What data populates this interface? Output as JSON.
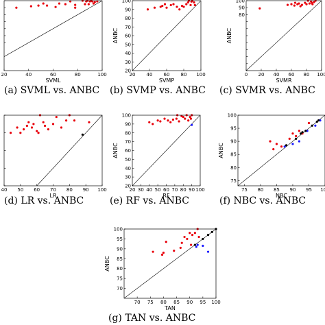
{
  "chart_data": [
    {
      "type": "scatter",
      "caption": "(a) SVML vs. ANBC",
      "xlabel": "SVML",
      "ylabel": "",
      "xlim": [
        20,
        100
      ],
      "ylim": [
        0,
        100
      ],
      "xticks": [
        20,
        40,
        60,
        80,
        100
      ],
      "yticks": [
        40,
        50,
        60,
        70,
        80,
        90,
        100
      ],
      "ytick_labels": [
        "",
        "",
        "",
        "",
        "",
        "90",
        ""
      ],
      "diagonal": true,
      "series": [
        {
          "color": "#e8000b",
          "points": [
            [
              30,
              90
            ],
            [
              42,
              92
            ],
            [
              48,
              93
            ],
            [
              52,
              96
            ],
            [
              55,
              93
            ],
            [
              62,
              91
            ],
            [
              65,
              96
            ],
            [
              70,
              95
            ],
            [
              74,
              99
            ],
            [
              78,
              90
            ],
            [
              78,
              94
            ],
            [
              84,
              100
            ],
            [
              86,
              95
            ],
            [
              87,
              99
            ],
            [
              88,
              100
            ],
            [
              89,
              95
            ],
            [
              90,
              99
            ],
            [
              91,
              100
            ],
            [
              92,
              99
            ],
            [
              93,
              96
            ],
            [
              94,
              98
            ],
            [
              96,
              99
            ]
          ]
        }
      ]
    },
    {
      "type": "scatter",
      "caption": "(b) SVMP vs. ANBC",
      "xlabel": "SVMP",
      "ylabel": "ANBC",
      "xlim": [
        20,
        100
      ],
      "ylim": [
        20,
        100
      ],
      "xticks": [
        20,
        40,
        60,
        80,
        100
      ],
      "yticks": [
        20,
        30,
        40,
        50,
        60,
        70,
        80,
        90,
        100
      ],
      "diagonal": true,
      "series": [
        {
          "color": "#e8000b",
          "points": [
            [
              38,
              90
            ],
            [
              46,
              92
            ],
            [
              53,
              93
            ],
            [
              55,
              94
            ],
            [
              58,
              96
            ],
            [
              60,
              92
            ],
            [
              65,
              95
            ],
            [
              68,
              96
            ],
            [
              72,
              93
            ],
            [
              75,
              90
            ],
            [
              78,
              94
            ],
            [
              80,
              93
            ],
            [
              83,
              96
            ],
            [
              85,
              98
            ],
            [
              86,
              100
            ],
            [
              88,
              95
            ],
            [
              89,
              99
            ],
            [
              90,
              100
            ],
            [
              92,
              98
            ],
            [
              93,
              95
            ]
          ]
        }
      ]
    },
    {
      "type": "scatter",
      "caption": "(c) SVMR vs. ANBC",
      "xlabel": "SVMR",
      "ylabel": "ANBC",
      "xlim": [
        0,
        100
      ],
      "ylim": [
        0,
        100
      ],
      "xticks": [
        0,
        20,
        40,
        60,
        80,
        100
      ],
      "yticks": [
        0,
        10,
        20,
        30,
        40,
        50,
        60,
        70,
        80,
        90,
        100
      ],
      "ytick_labels": [
        "",
        "",
        "",
        "",
        "",
        "",
        "",
        "",
        "80",
        "90",
        "100"
      ],
      "diagonal": true,
      "series": [
        {
          "color": "#e8000b",
          "points": [
            [
              18,
              89
            ],
            [
              55,
              94
            ],
            [
              60,
              95
            ],
            [
              64,
              93
            ],
            [
              65,
              97
            ],
            [
              68,
              95
            ],
            [
              70,
              96
            ],
            [
              72,
              92
            ],
            [
              74,
              94
            ],
            [
              78,
              97
            ],
            [
              80,
              95
            ],
            [
              82,
              100
            ],
            [
              84,
              96
            ],
            [
              86,
              99
            ],
            [
              87,
              97
            ],
            [
              88,
              95
            ],
            [
              90,
              98
            ],
            [
              92,
              100
            ]
          ]
        }
      ]
    },
    {
      "type": "scatter",
      "caption": "(d) LR vs. ANBC",
      "xlabel": "LR",
      "ylabel": "",
      "xlim": [
        40,
        100
      ],
      "ylim": [
        60,
        100
      ],
      "xticks": [
        40,
        50,
        60,
        70,
        80,
        90,
        100
      ],
      "yticks": [
        60,
        70,
        80,
        90,
        100
      ],
      "diagonal": true,
      "series": [
        {
          "color": "#e8000b",
          "points": [
            [
              44,
              90
            ],
            [
              48,
              93
            ],
            [
              50,
              90
            ],
            [
              52,
              92
            ],
            [
              54,
              94
            ],
            [
              55,
              96
            ],
            [
              57,
              93
            ],
            [
              58,
              95
            ],
            [
              60,
              91
            ],
            [
              61,
              90
            ],
            [
              62,
              100
            ],
            [
              64,
              96
            ],
            [
              65,
              94
            ],
            [
              67,
              92
            ],
            [
              70,
              95
            ],
            [
              72,
              99
            ],
            [
              75,
              93
            ],
            [
              78,
              97
            ],
            [
              80,
              100
            ],
            [
              83,
              97
            ],
            [
              92,
              96
            ]
          ]
        },
        {
          "color": "#000000",
          "points": [
            [
              88,
              89
            ]
          ]
        }
      ]
    },
    {
      "type": "scatter",
      "caption": "(e) RF vs. ANBC",
      "xlabel": "RF",
      "ylabel": "ANBC",
      "xlim": [
        20,
        100
      ],
      "ylim": [
        20,
        100
      ],
      "xticks": [
        20,
        30,
        40,
        50,
        60,
        70,
        80,
        90,
        100
      ],
      "yticks": [
        20,
        30,
        40,
        50,
        60,
        70,
        80,
        90,
        100
      ],
      "diagonal": true,
      "series": [
        {
          "color": "#e8000b",
          "points": [
            [
              40,
              92
            ],
            [
              44,
              90
            ],
            [
              50,
              94
            ],
            [
              53,
              93
            ],
            [
              58,
              96
            ],
            [
              62,
              94
            ],
            [
              65,
              92
            ],
            [
              68,
              95
            ],
            [
              72,
              96
            ],
            [
              73,
              100
            ],
            [
              75,
              93
            ],
            [
              78,
              99
            ],
            [
              80,
              98
            ],
            [
              82,
              96
            ],
            [
              84,
              100
            ],
            [
              86,
              94
            ],
            [
              88,
              98
            ],
            [
              89,
              96
            ],
            [
              90,
              100
            ]
          ]
        },
        {
          "color": "#1a1aff",
          "points": [
            [
              90,
              89
            ]
          ]
        }
      ]
    },
    {
      "type": "scatter",
      "caption": "(f) NBC vs. ANBC",
      "xlabel": "NBC",
      "ylabel": "ANBC",
      "xlim": [
        73,
        100
      ],
      "ylim": [
        73,
        100
      ],
      "xticks": [
        75,
        80,
        85,
        90,
        95,
        100
      ],
      "yticks": [
        75,
        80,
        85,
        90,
        95,
        100
      ],
      "diagonal": true,
      "series": [
        {
          "color": "#e8000b",
          "points": [
            [
              83,
              90
            ],
            [
              84,
              87
            ],
            [
              85,
              89
            ],
            [
              86.5,
              88
            ],
            [
              89,
              91
            ],
            [
              90,
              93
            ],
            [
              91,
              92
            ],
            [
              92,
              94
            ],
            [
              93,
              93
            ],
            [
              95,
              97
            ]
          ]
        },
        {
          "color": "#1a1aff",
          "points": [
            [
              87.5,
              88
            ],
            [
              90,
              89
            ],
            [
              92,
              90
            ],
            [
              94.5,
              94
            ],
            [
              97,
              96
            ],
            [
              98.5,
              98
            ]
          ]
        },
        {
          "color": "#000000",
          "points": [
            [
              88,
              88.5
            ],
            [
              91,
              91
            ],
            [
              92.5,
              93
            ],
            [
              93,
              93.5
            ],
            [
              94,
              94
            ],
            [
              96,
              96
            ],
            [
              97.5,
              97.5
            ],
            [
              98,
              98
            ]
          ]
        }
      ]
    },
    {
      "type": "scatter",
      "caption": "(g) TAN vs. ANBC",
      "xlabel": "TAN",
      "ylabel": "ANBC",
      "xlim": [
        65,
        100
      ],
      "ylim": [
        65,
        100
      ],
      "xticks": [
        70,
        75,
        80,
        85,
        90,
        95,
        100
      ],
      "yticks": [
        70,
        75,
        80,
        85,
        90,
        95,
        100
      ],
      "diagonal": true,
      "series": [
        {
          "color": "#e8000b",
          "points": [
            [
              76,
              88.5
            ],
            [
              79.5,
              87
            ],
            [
              80,
              88
            ],
            [
              81,
              93.5
            ],
            [
              84,
              89
            ],
            [
              86.5,
              90.5
            ],
            [
              87,
              93
            ],
            [
              88,
              96
            ],
            [
              89,
              95
            ],
            [
              90,
              98
            ],
            [
              90.5,
              92
            ],
            [
              91,
              97
            ],
            [
              92,
              98
            ],
            [
              93,
              100
            ],
            [
              93.5,
              96
            ]
          ]
        },
        {
          "color": "#1a1aff",
          "points": [
            [
              92.5,
              91
            ],
            [
              93,
              92
            ],
            [
              95,
              91.5
            ],
            [
              97,
              88.5
            ]
          ]
        },
        {
          "color": "#000000",
          "points": [
            [
              92,
              92
            ],
            [
              95,
              95
            ],
            [
              97,
              97
            ],
            [
              98.5,
              98.5
            ],
            [
              100,
              100
            ]
          ]
        }
      ]
    }
  ]
}
